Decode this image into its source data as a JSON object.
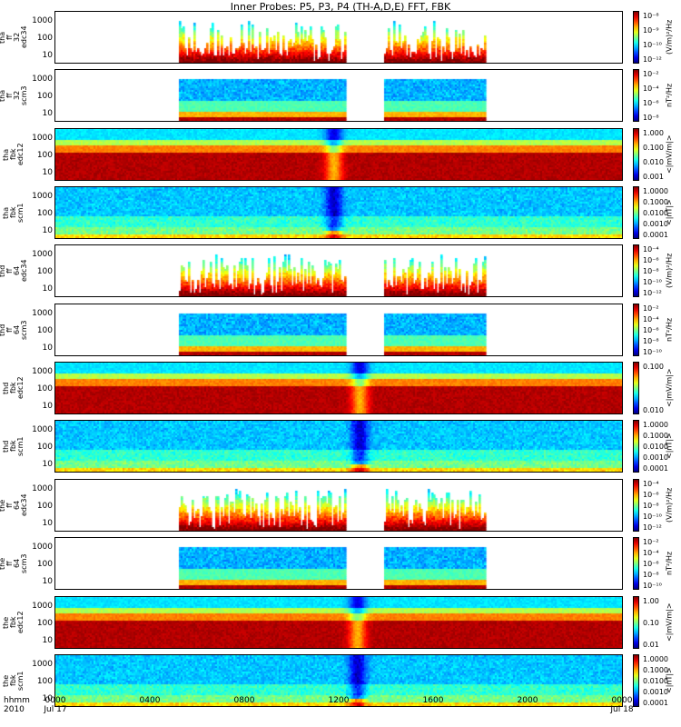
{
  "title": "Inner Probes: P5, P3, P4 (TH-A,D,E) FFT, FBK",
  "axis_footer": {
    "label_top": "hhmm",
    "label_bottom": "2010"
  },
  "chart_data": {
    "type": "heatmap",
    "xlabel": "hhmm",
    "x_ticks": [
      {
        "label": "0000",
        "sub": "Jul 17",
        "t": 0
      },
      {
        "label": "0400",
        "sub": "",
        "t": 4
      },
      {
        "label": "0800",
        "sub": "",
        "t": 8
      },
      {
        "label": "1200",
        "sub": "",
        "t": 12
      },
      {
        "label": "1600",
        "sub": "",
        "t": 16
      },
      {
        "label": "2000",
        "sub": "",
        "t": 20
      },
      {
        "label": "0000",
        "sub": "Jul 18",
        "t": 24
      }
    ],
    "x_range_hours": [
      0,
      24
    ],
    "panels": [
      {
        "ylabel": "tha\nff\n32\nedc34",
        "yticks": [
          "1000",
          "100",
          "10"
        ],
        "cticks": [
          "10^-8",
          "10^-9",
          "10^-10",
          "10^-12"
        ],
        "cunit": "(V/m)^2/Hz",
        "kind": "fft_e",
        "coverage": [
          [
            5.2,
            12.3
          ],
          [
            13.9,
            18.2
          ]
        ],
        "event": 12.7
      },
      {
        "ylabel": "tha\nff\n32\nscm3",
        "yticks": [
          "1000",
          "100",
          "10"
        ],
        "cticks": [
          "10^-2",
          "10^-4",
          "10^-6",
          "10^-8"
        ],
        "cunit": "nT^2/Hz",
        "kind": "fft_b",
        "coverage": [
          [
            5.2,
            12.3
          ],
          [
            13.9,
            18.2
          ]
        ],
        "event": 12.7
      },
      {
        "ylabel": "tha\nfbk\nedc12",
        "yticks": [
          "1000",
          "100",
          "10"
        ],
        "cticks": [
          "1.000",
          "0.100",
          "0.010",
          "0.001"
        ],
        "cunit": "<|mV/m|>",
        "kind": "fbk_e",
        "coverage": [
          [
            0,
            24
          ]
        ],
        "event": 11.8
      },
      {
        "ylabel": "tha\nfbk\nscm1",
        "yticks": [
          "1000",
          "100",
          "10"
        ],
        "cticks": [
          "1.0000",
          "0.1000",
          "0.0100",
          "0.0010",
          "0.0001"
        ],
        "cunit": "<|nT|>",
        "kind": "fbk_b",
        "coverage": [
          [
            0,
            24
          ]
        ],
        "event": 11.8
      },
      {
        "ylabel": "thd\nff\n64\nedc34",
        "yticks": [
          "1000",
          "100",
          "10"
        ],
        "cticks": [
          "10^-4",
          "10^-6",
          "10^-8",
          "10^-10",
          "10^-12"
        ],
        "cunit": "(V/m)^2/Hz",
        "kind": "fft_e",
        "coverage": [
          [
            5.2,
            12.3
          ],
          [
            13.9,
            18.2
          ]
        ],
        "event": 12.7
      },
      {
        "ylabel": "thd\nff\n64\nscm3",
        "yticks": [
          "1000",
          "100",
          "10"
        ],
        "cticks": [
          "10^-2",
          "10^-4",
          "10^-6",
          "10^-8",
          "10^-10"
        ],
        "cunit": "nT^2/Hz",
        "kind": "fft_b",
        "coverage": [
          [
            5.2,
            12.3
          ],
          [
            13.9,
            18.2
          ]
        ],
        "event": 12.7
      },
      {
        "ylabel": "thd\nfbk\nedc12",
        "yticks": [
          "1000",
          "100",
          "10"
        ],
        "cticks": [
          "0.100",
          "0.010"
        ],
        "cunit": "<|mV/m|>",
        "kind": "fbk_e",
        "coverage": [
          [
            0,
            24
          ]
        ],
        "event": 12.9
      },
      {
        "ylabel": "thd\nfbk\nscm1",
        "yticks": [
          "1000",
          "100",
          "10"
        ],
        "cticks": [
          "1.0000",
          "0.1000",
          "0.0100",
          "0.0010",
          "0.0001"
        ],
        "cunit": "<|nT|>",
        "kind": "fbk_b",
        "coverage": [
          [
            0,
            24
          ]
        ],
        "event": 12.9
      },
      {
        "ylabel": "the\nff\n64\nedc34",
        "yticks": [
          "1000",
          "100",
          "10"
        ],
        "cticks": [
          "10^-4",
          "10^-6",
          "10^-8",
          "10^-10",
          "10^-12"
        ],
        "cunit": "(V/m)^2/Hz",
        "kind": "fft_e",
        "coverage": [
          [
            5.2,
            12.3
          ],
          [
            13.9,
            18.2
          ]
        ],
        "event": 12.8
      },
      {
        "ylabel": "the\nff\n64\nscm3",
        "yticks": [
          "1000",
          "100",
          "10"
        ],
        "cticks": [
          "10^-2",
          "10^-4",
          "10^-6",
          "10^-8",
          "10^-10"
        ],
        "cunit": "nT^2/Hz",
        "kind": "fft_b",
        "coverage": [
          [
            5.2,
            12.3
          ],
          [
            13.9,
            18.2
          ]
        ],
        "event": 12.8
      },
      {
        "ylabel": "the\nfbk\nedc12",
        "yticks": [
          "1000",
          "100",
          "10"
        ],
        "cticks": [
          "1.00",
          "0.10",
          "0.01"
        ],
        "cunit": "<|mV/m|>",
        "kind": "fbk_e",
        "coverage": [
          [
            0,
            24
          ]
        ],
        "event": 12.8
      },
      {
        "ylabel": "the\nfbk\nscm1",
        "yticks": [
          "1000",
          "100",
          "10"
        ],
        "cticks": [
          "1.0000",
          "0.1000",
          "0.0100",
          "0.0010",
          "0.0001"
        ],
        "cunit": "<|nT|>",
        "kind": "fbk_b",
        "coverage": [
          [
            0,
            24
          ]
        ],
        "event": 12.8
      }
    ]
  }
}
